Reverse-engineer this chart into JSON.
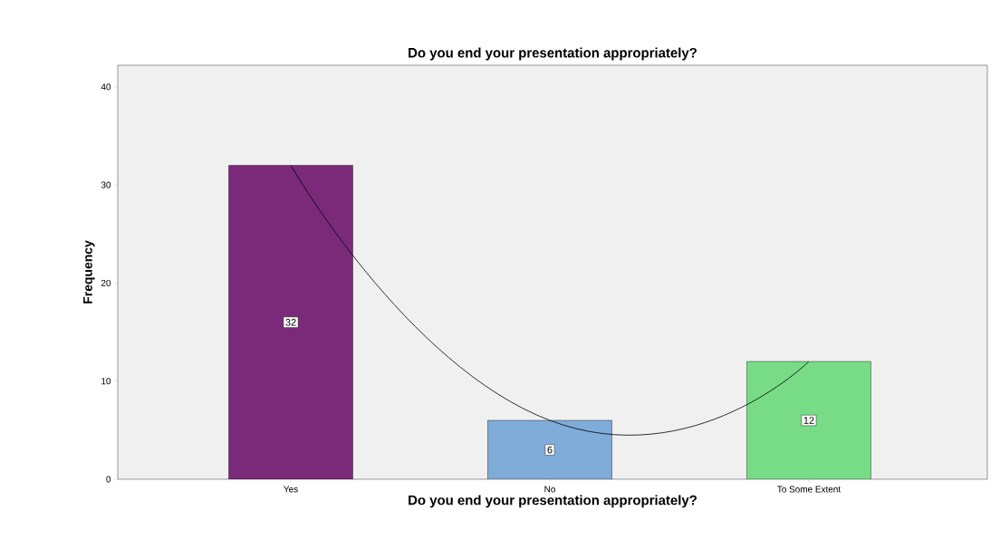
{
  "chart_data": {
    "type": "bar",
    "title": "Do you end your presentation appropriately?",
    "xlabel": "Do you end your presentation appropriately?",
    "ylabel": "Frequency",
    "categories": [
      "Yes",
      "No",
      "To Some Extent"
    ],
    "values": [
      32,
      6,
      12
    ],
    "colors": [
      "#7b2a7a",
      "#80acd9",
      "#78dc86"
    ],
    "value_labels": [
      "32",
      "6",
      "12"
    ],
    "ylim": [
      0,
      42.2
    ],
    "yticks": [
      0,
      10,
      20,
      30,
      40
    ],
    "series": [
      {
        "type": "line",
        "color": "#000000",
        "values": [
          32,
          6,
          12
        ]
      }
    ]
  }
}
